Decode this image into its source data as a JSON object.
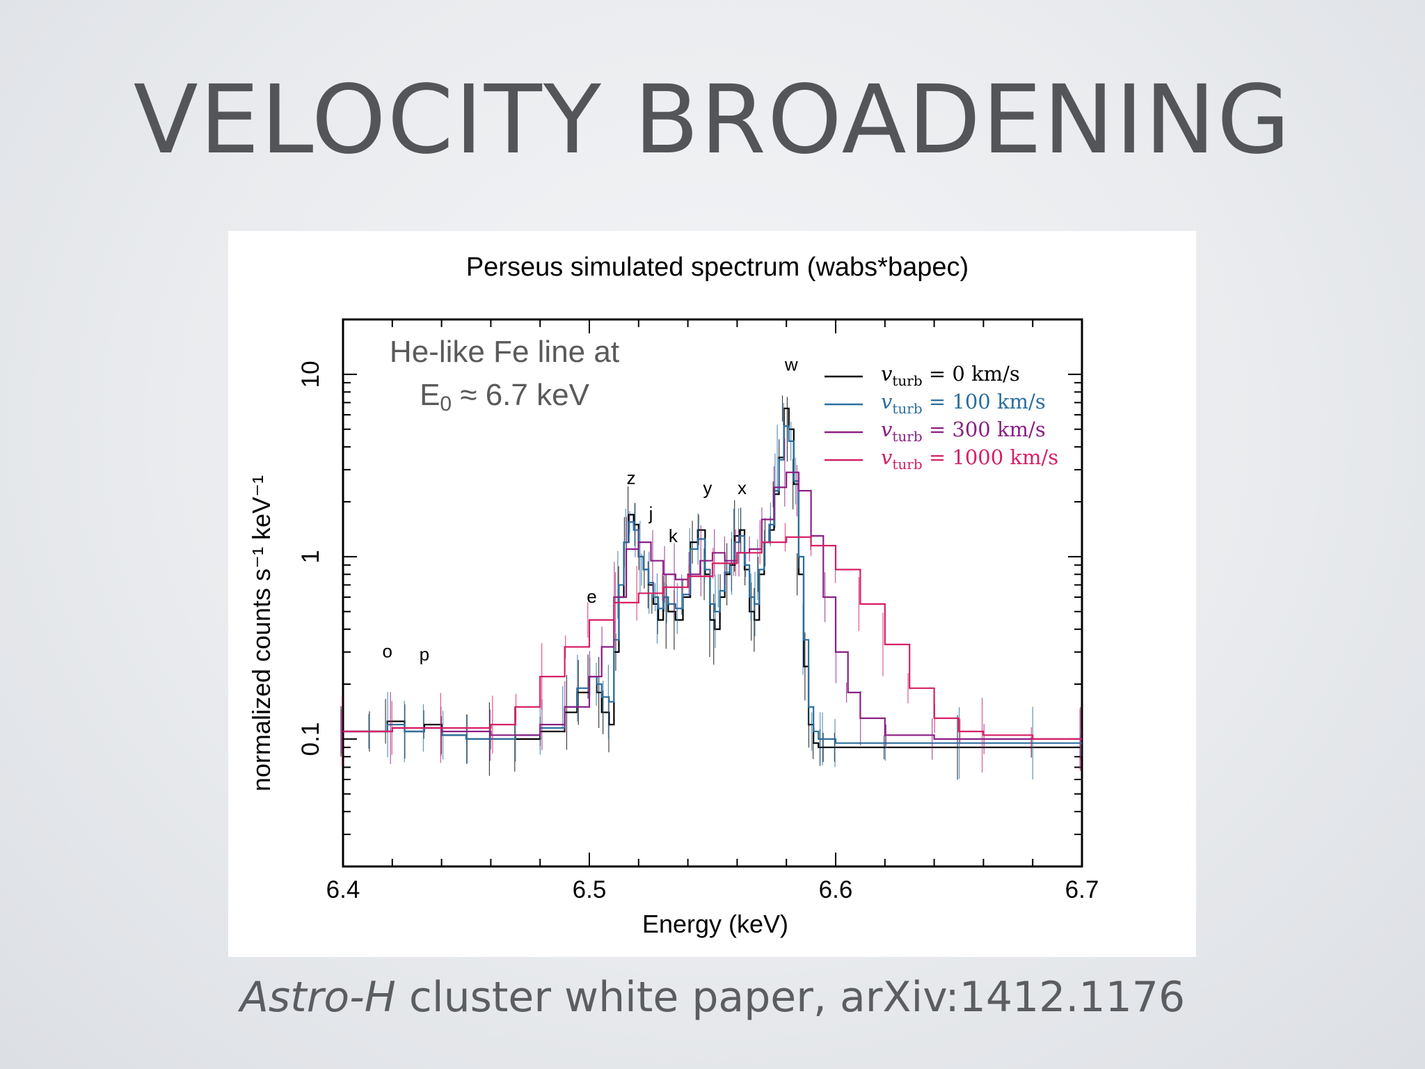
{
  "slide": {
    "title": "VELOCITY BROADENING",
    "caption_italic": "Astro-H",
    "caption_rest": " cluster white paper, arXiv:1412.1176"
  },
  "chart_data": {
    "type": "line",
    "title": "Perseus simulated spectrum (wabs*bapec)",
    "xlabel": "Energy (keV)",
    "ylabel": "normalized counts s⁻¹ keV⁻¹",
    "xlim": [
      6.4,
      6.7
    ],
    "ylim": [
      0.02,
      20
    ],
    "yscale": "log",
    "x_ticks": [
      6.4,
      6.5,
      6.6,
      6.7
    ],
    "x_tick_labels": [
      "6.4",
      "6.5",
      "6.6",
      "6.7"
    ],
    "y_ticks": [
      0.1,
      1,
      10
    ],
    "y_tick_labels": [
      "0.1",
      "1",
      "10"
    ],
    "annotation": {
      "line1": "He-like Fe line at",
      "line2_prefix": "E",
      "line2_sub": "0",
      "line2_rest": " ≈ 6.7 keV"
    },
    "line_labels": [
      {
        "text": "o",
        "x": 6.418,
        "y": 0.28
      },
      {
        "text": "p",
        "x": 6.433,
        "y": 0.27
      },
      {
        "text": "e",
        "x": 6.501,
        "y": 0.56
      },
      {
        "text": "z",
        "x": 6.517,
        "y": 2.5
      },
      {
        "text": "j",
        "x": 6.525,
        "y": 1.6
      },
      {
        "text": "k",
        "x": 6.534,
        "y": 1.2
      },
      {
        "text": "y",
        "x": 6.548,
        "y": 2.2
      },
      {
        "text": "x",
        "x": 6.562,
        "y": 2.2
      },
      {
        "text": "w",
        "x": 6.582,
        "y": 10.5
      }
    ],
    "legend": {
      "position": "top-right",
      "var": "v",
      "sub": "turb",
      "eq": " = "
    },
    "series": [
      {
        "name": "0 km/s",
        "color": "#000000",
        "x": [
          6.4,
          6.41,
          6.418,
          6.425,
          6.433,
          6.44,
          6.45,
          6.46,
          6.47,
          6.48,
          6.49,
          6.495,
          6.5,
          6.503,
          6.505,
          6.508,
          6.51,
          6.512,
          6.514,
          6.516,
          6.518,
          6.52,
          6.522,
          6.524,
          6.526,
          6.528,
          6.53,
          6.532,
          6.535,
          6.538,
          6.541,
          6.544,
          6.547,
          6.549,
          6.551,
          6.553,
          6.555,
          6.557,
          6.559,
          6.561,
          6.563,
          6.565,
          6.567,
          6.569,
          6.571,
          6.573,
          6.575,
          6.577,
          6.579,
          6.581,
          6.583,
          6.585,
          6.587,
          6.589,
          6.591,
          6.593,
          6.595,
          6.6,
          6.62,
          6.65,
          6.68,
          6.7
        ],
        "y": [
          0.11,
          0.11,
          0.125,
          0.11,
          0.12,
          0.105,
          0.1,
          0.1,
          0.1,
          0.11,
          0.14,
          0.18,
          0.22,
          0.18,
          0.14,
          0.12,
          0.3,
          0.6,
          1.2,
          1.7,
          1.5,
          1.0,
          0.85,
          0.7,
          0.55,
          0.45,
          0.6,
          0.5,
          0.45,
          0.6,
          1.2,
          1.4,
          0.8,
          0.45,
          0.4,
          0.6,
          0.8,
          0.9,
          1.3,
          1.4,
          0.85,
          0.5,
          0.45,
          0.8,
          1.2,
          1.4,
          2.2,
          3.5,
          6.5,
          5.0,
          2.5,
          0.8,
          0.25,
          0.12,
          0.095,
          0.09,
          0.09,
          0.09,
          0.09,
          0.09,
          0.09,
          0.09
        ]
      },
      {
        "name": "100 km/s",
        "color": "#2b6f9e",
        "x": [
          6.4,
          6.41,
          6.418,
          6.425,
          6.433,
          6.44,
          6.45,
          6.46,
          6.47,
          6.48,
          6.49,
          6.495,
          6.5,
          6.503,
          6.505,
          6.508,
          6.51,
          6.512,
          6.514,
          6.516,
          6.518,
          6.52,
          6.522,
          6.524,
          6.526,
          6.528,
          6.53,
          6.532,
          6.535,
          6.538,
          6.541,
          6.544,
          6.547,
          6.549,
          6.551,
          6.553,
          6.555,
          6.557,
          6.559,
          6.561,
          6.563,
          6.565,
          6.567,
          6.569,
          6.571,
          6.573,
          6.575,
          6.577,
          6.579,
          6.581,
          6.583,
          6.585,
          6.587,
          6.589,
          6.591,
          6.593,
          6.595,
          6.6,
          6.62,
          6.65,
          6.68,
          6.7
        ],
        "y": [
          0.11,
          0.11,
          0.12,
          0.11,
          0.115,
          0.105,
          0.1,
          0.1,
          0.105,
          0.115,
          0.15,
          0.19,
          0.22,
          0.2,
          0.17,
          0.16,
          0.35,
          0.7,
          1.2,
          1.55,
          1.4,
          1.0,
          0.85,
          0.72,
          0.6,
          0.52,
          0.6,
          0.55,
          0.52,
          0.62,
          1.1,
          1.25,
          0.85,
          0.55,
          0.5,
          0.65,
          0.82,
          0.92,
          1.2,
          1.3,
          0.9,
          0.6,
          0.55,
          0.85,
          1.2,
          1.5,
          2.3,
          3.4,
          5.2,
          4.3,
          2.6,
          1.0,
          0.35,
          0.15,
          0.11,
          0.1,
          0.1,
          0.095,
          0.095,
          0.095,
          0.095,
          0.095
        ]
      },
      {
        "name": "300 km/s",
        "color": "#8b1f84",
        "x": [
          6.4,
          6.42,
          6.44,
          6.46,
          6.48,
          6.49,
          6.5,
          6.505,
          6.51,
          6.515,
          6.52,
          6.525,
          6.53,
          6.535,
          6.54,
          6.545,
          6.55,
          6.555,
          6.56,
          6.565,
          6.57,
          6.575,
          6.58,
          6.585,
          6.59,
          6.595,
          6.6,
          6.605,
          6.61,
          6.62,
          6.64,
          6.66,
          6.7
        ],
        "y": [
          0.11,
          0.115,
          0.11,
          0.105,
          0.12,
          0.15,
          0.22,
          0.32,
          0.6,
          1.1,
          1.2,
          0.95,
          0.8,
          0.75,
          0.8,
          0.95,
          1.05,
          0.95,
          1.05,
          1.1,
          1.6,
          2.4,
          2.9,
          2.3,
          1.3,
          0.6,
          0.3,
          0.18,
          0.13,
          0.105,
          0.1,
          0.1,
          0.1
        ]
      },
      {
        "name": "1000 km/s",
        "color": "#d61f66",
        "x": [
          6.4,
          6.42,
          6.44,
          6.46,
          6.47,
          6.48,
          6.49,
          6.5,
          6.51,
          6.52,
          6.53,
          6.54,
          6.55,
          6.56,
          6.57,
          6.58,
          6.59,
          6.6,
          6.61,
          6.62,
          6.63,
          6.64,
          6.65,
          6.66,
          6.68,
          6.7
        ],
        "y": [
          0.11,
          0.115,
          0.115,
          0.12,
          0.15,
          0.22,
          0.32,
          0.45,
          0.56,
          0.63,
          0.68,
          0.78,
          0.92,
          1.05,
          1.2,
          1.28,
          1.15,
          0.85,
          0.55,
          0.33,
          0.19,
          0.13,
          0.11,
          0.105,
          0.1,
          0.1
        ]
      }
    ]
  }
}
